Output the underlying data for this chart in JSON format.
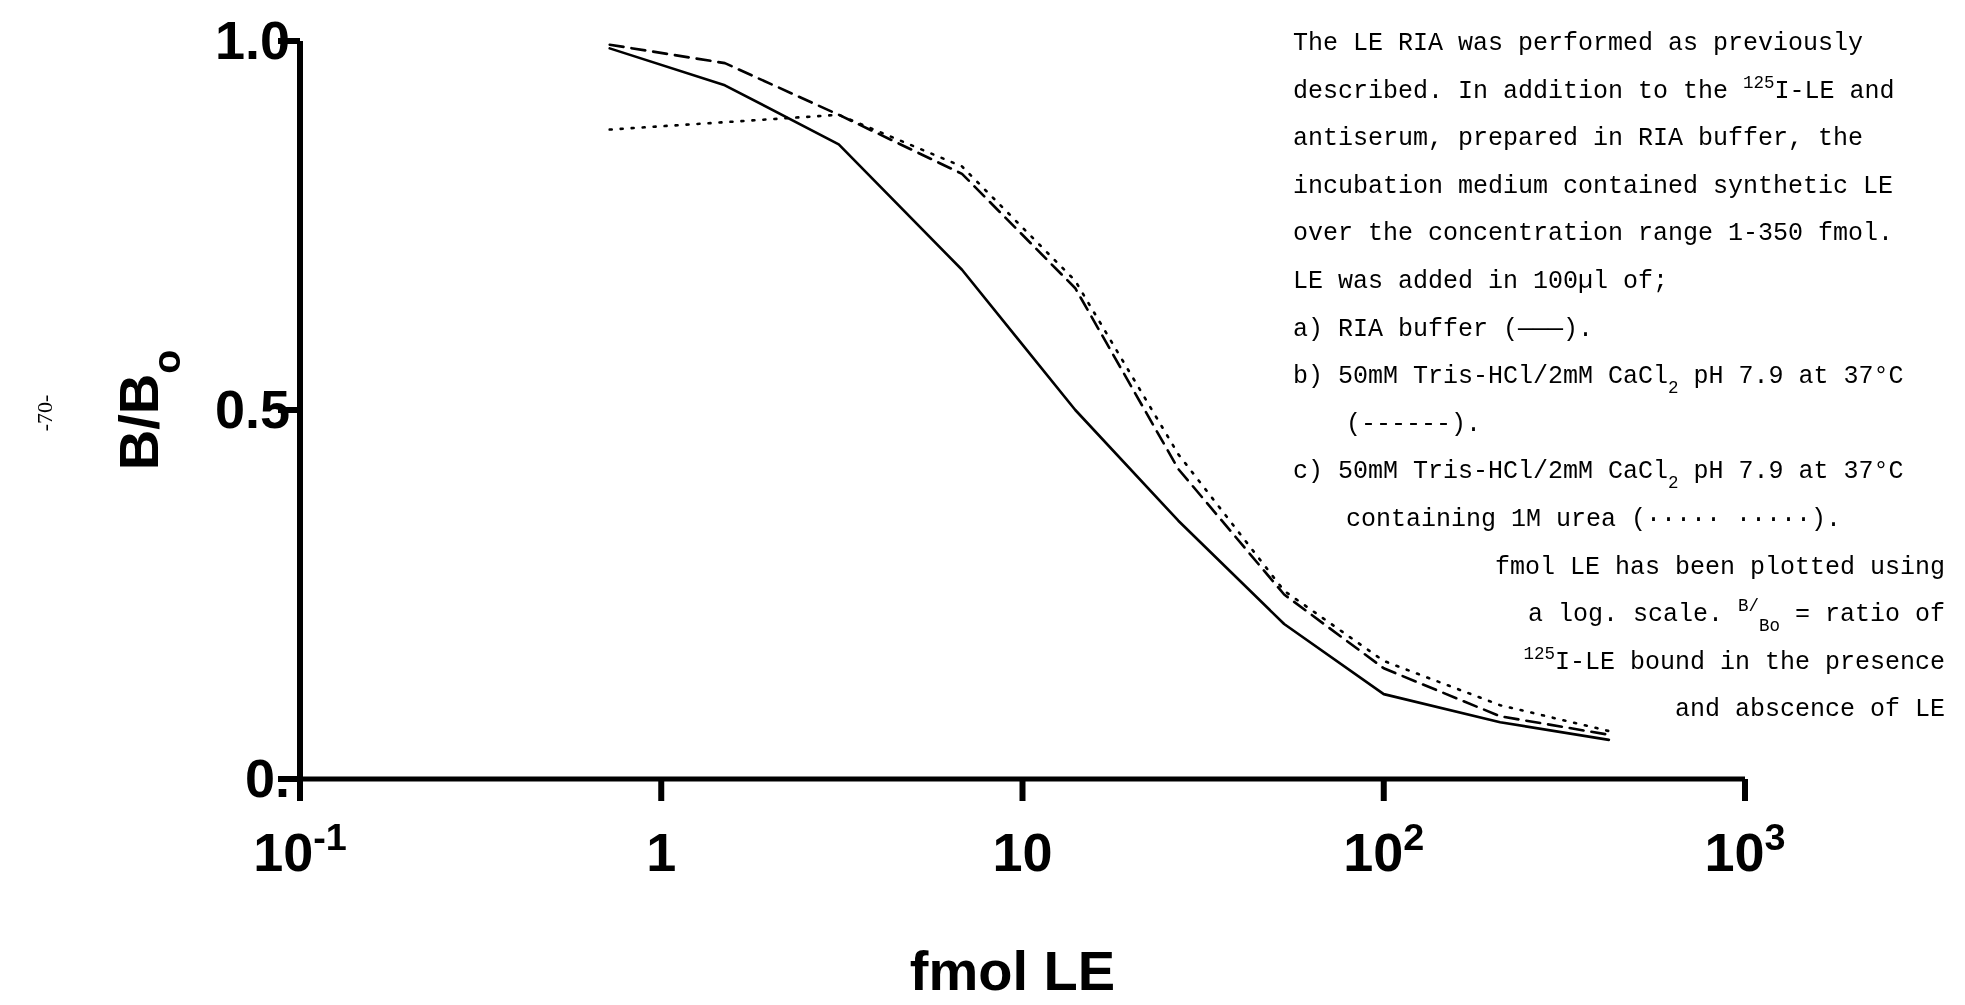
{
  "chart_data": {
    "type": "line",
    "xlabel": "fmol LE",
    "ylabel": "B/B$_{o}$",
    "log": "x",
    "xlim": [
      0.1,
      1000
    ],
    "ylim": [
      0,
      1
    ],
    "xticks": [
      {
        "value": 0.1,
        "label": "10$^{-1}$"
      },
      1,
      10,
      {
        "value": 100,
        "label": "10$^{2}$"
      },
      {
        "value": 1000,
        "label": "10$^{3}$"
      }
    ],
    "yticks": [
      {
        "value": 0,
        "label": "0."
      },
      0.5,
      {
        "value": 1,
        "label": "1.0"
      }
    ],
    "x": [
      0.72,
      1.5,
      3.1,
      6.8,
      14,
      27,
      53,
      100,
      210,
      420
    ],
    "series": [
      {
        "color": "#000000",
        "line_style": "solid",
        "values": [
          0.99,
          0.94,
          0.86,
          0.69,
          0.5,
          0.35,
          0.21,
          0.115,
          0.077,
          0.053
        ]
      },
      {
        "color": "#000000",
        "line_style": "dashed",
        "values": [
          0.995,
          0.97,
          0.9,
          0.82,
          0.665,
          0.42,
          0.25,
          0.15,
          0.085,
          0.06
        ]
      },
      {
        "color": "#000000",
        "line_style": "dotted",
        "values": [
          0.88,
          0.89,
          0.9,
          0.83,
          0.675,
          0.44,
          0.255,
          0.16,
          0.1,
          0.065
        ]
      }
    ],
    "annotations": [
      "The LE RIA was performed as previously",
      "described. In addition to the $^{125}$I-LE and",
      "antiserum, prepared in RIA buffer, the",
      "incubation medium contained synthetic LE",
      "over the concentration range 1-350 fmol.",
      "LE was added in 100µl of;",
      "a) RIA buffer (———).",
      "b) 50mM Tris-HCl/2mM CaCl$_{2}$ pH 7.9 at 37°C",
      "(------).",
      "c) 50mM Tris-HCl/2mM CaCl$_{2}$ pH 7.9 at 37°C",
      "containing 1M urea (····· ·····).",
      "fmol LE has been plotted using",
      "a log. scale. $^{B/}$$_{Bo}$ = ratio of",
      "$^{125}$I-LE bound in the presence",
      "and abscence of LE",
      "-70-"
    ]
  }
}
